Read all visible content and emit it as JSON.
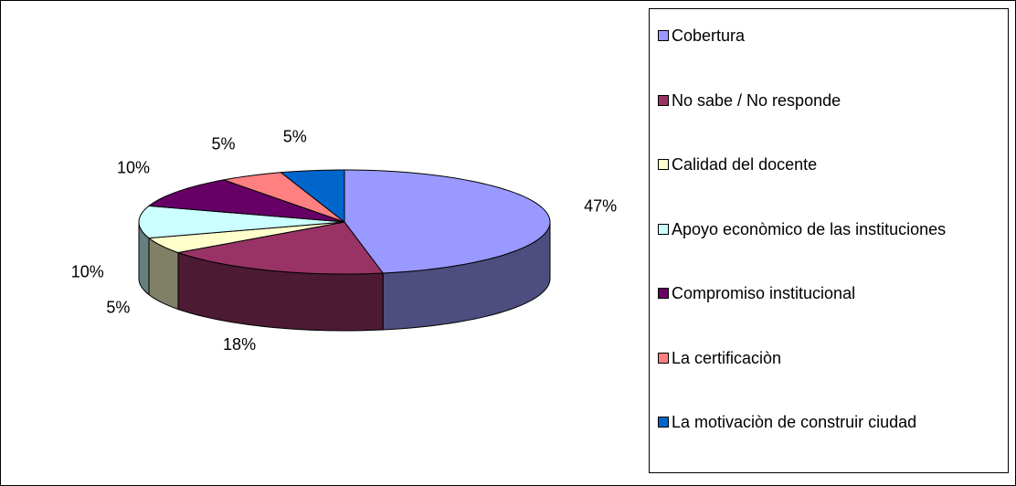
{
  "chart_data": {
    "type": "pie",
    "three_d": true,
    "categories": [
      "Cobertura",
      "No sabe / No responde",
      "Calidad del docente",
      "Apoyo econòmico de las instituciones",
      "Compromiso institucional",
      "La certificaciòn",
      "La motivaciòn de construir ciudad"
    ],
    "values": [
      47,
      18,
      5,
      10,
      10,
      5,
      5
    ],
    "value_labels": [
      "47%",
      "18%",
      "5%",
      "10%",
      "10%",
      "5%",
      "5%"
    ],
    "colors": [
      "#9999ff",
      "#993366",
      "#ffffcc",
      "#ccffff",
      "#660066",
      "#ff8080",
      "#0066cc"
    ],
    "legend": "right"
  }
}
